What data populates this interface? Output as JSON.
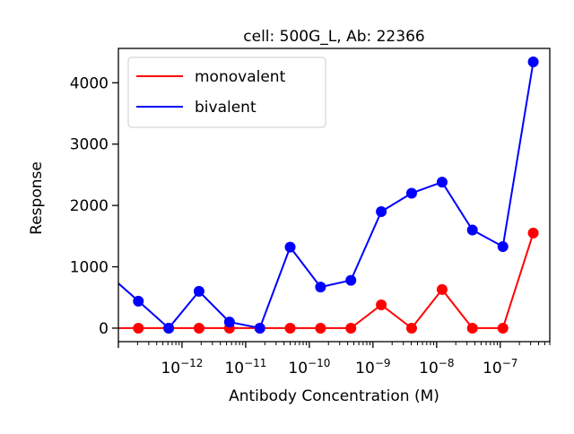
{
  "chart_data": {
    "type": "line",
    "title": "cell: 500G_L, Ab: 22366",
    "xlabel": "Antibody Concentration (M)",
    "ylabel": "Response",
    "xscale": "log",
    "xlim": [
      1e-13,
      6e-07
    ],
    "ylim": [
      -220,
      4560
    ],
    "grid": false,
    "legend_position": "top-left",
    "x": [
      2.06e-13,
      6.17e-13,
      1.85e-12,
      5.56e-12,
      1.67e-11,
      5e-11,
      1.5e-10,
      4.5e-10,
      1.35e-09,
      4.05e-09,
      1.22e-08,
      3.65e-08,
      1.1e-07,
      3.3e-07
    ],
    "series": [
      {
        "name": "monovalent",
        "color": "#ff0000",
        "values": [
          0,
          0,
          0,
          0,
          0,
          0,
          0,
          0,
          380,
          0,
          630,
          0,
          0,
          1550
        ]
      },
      {
        "name": "bivalent",
        "color": "#0000ff",
        "values": [
          440,
          0,
          600,
          100,
          0,
          1320,
          670,
          780,
          1900,
          2200,
          2380,
          1600,
          1330,
          4340
        ]
      }
    ],
    "yticks": [
      {
        "value": 0,
        "label": "0"
      },
      {
        "value": 1000,
        "label": "1000"
      },
      {
        "value": 2000,
        "label": "2000"
      },
      {
        "value": 3000,
        "label": "3000"
      },
      {
        "value": 4000,
        "label": "4000"
      }
    ],
    "xticks": [
      {
        "exp": -12,
        "label": "10",
        "sup": "−12"
      },
      {
        "exp": -11,
        "label": "10",
        "sup": "−11"
      },
      {
        "exp": -10,
        "label": "10",
        "sup": "−10"
      },
      {
        "exp": -9,
        "label": "10",
        "sup": "−9"
      },
      {
        "exp": -8,
        "label": "10",
        "sup": "−8"
      },
      {
        "exp": -7,
        "label": "10",
        "sup": "−7"
      }
    ]
  }
}
